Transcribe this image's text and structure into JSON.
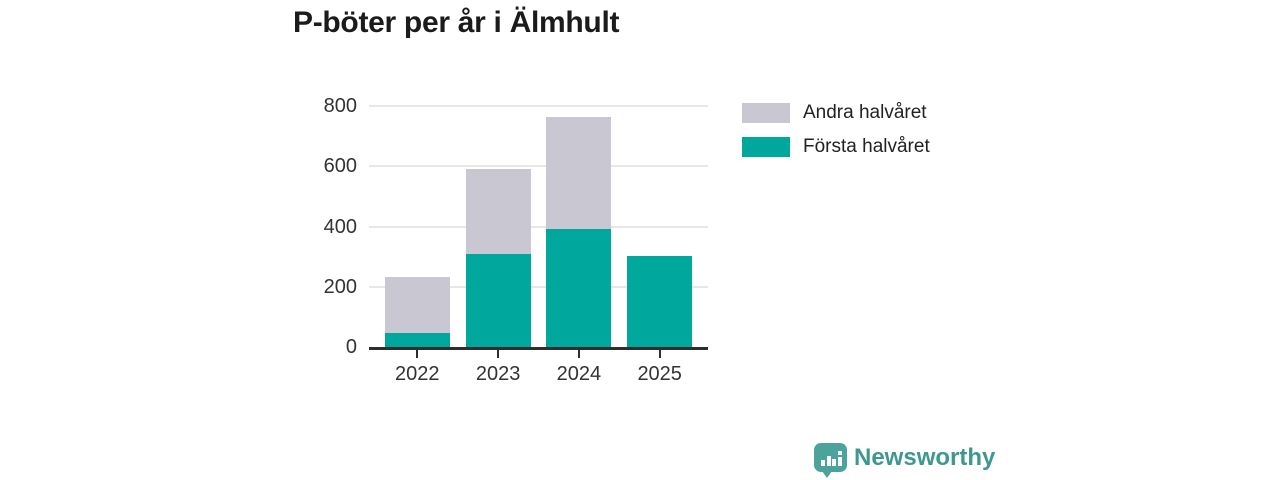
{
  "title": "P-böter per år i Älmhult",
  "footer": {
    "brand": "Newsworthy"
  },
  "colors": {
    "first_half": "#00a79d",
    "second_half": "#c9c7d2",
    "axis": "#2e2e2e",
    "gridline": "#e7e7e7",
    "axis_text": "#333333",
    "title_text": "#1b1b1b",
    "brand_text": "#3f978f",
    "brand_icon": "#4ba39b"
  },
  "legend": {
    "items": [
      {
        "label": "Andra halvåret",
        "color": "#c9c7d2"
      },
      {
        "label": "Första halvåret",
        "color": "#00a79d"
      }
    ]
  },
  "chart_data": {
    "type": "bar",
    "stacked": true,
    "title": "P-böter per år i Älmhult",
    "categories": [
      "2022",
      "2023",
      "2024",
      "2025"
    ],
    "series": [
      {
        "name": "Första halvåret",
        "color": "#00a79d",
        "values": [
          45,
          310,
          392,
          303
        ]
      },
      {
        "name": "Andra halvåret",
        "color": "#c9c7d2",
        "values": [
          188,
          280,
          370,
          0
        ]
      }
    ],
    "totals": [
      233,
      590,
      762,
      303
    ],
    "xlabel": "",
    "ylabel": "",
    "ylim": [
      0,
      800
    ],
    "yticks": [
      0,
      200,
      400,
      600,
      800
    ],
    "grid": true,
    "legend_position": "right"
  }
}
